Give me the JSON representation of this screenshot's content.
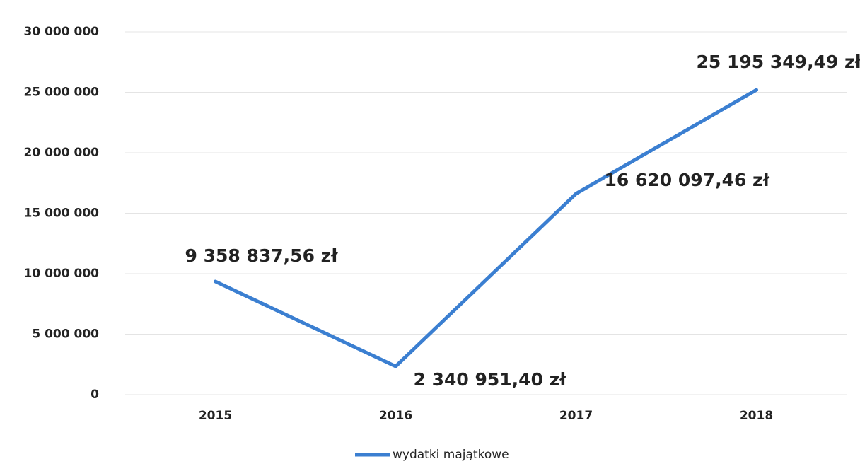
{
  "chart_data": {
    "type": "line",
    "categories": [
      "2015",
      "2016",
      "2017",
      "2018"
    ],
    "series": [
      {
        "name": "wydatki majątkowe",
        "color": "#3b7fd1",
        "values": [
          9358837.56,
          2340951.4,
          16620097.46,
          25195349.49
        ],
        "value_labels": [
          "9 358 837,56 zł",
          "2 340 951,40 zł",
          "16 620 097,46 zł",
          "25 195 349,49 zł"
        ]
      }
    ],
    "ylim": [
      0,
      30000000
    ],
    "yticks": [
      0,
      {
        "value": 5000000,
        "label": "5 000 000"
      },
      {
        "value": 10000000,
        "label": "10 000 000"
      },
      {
        "value": 15000000,
        "label": "15 000 000"
      },
      {
        "value": 20000000,
        "label": "20 000 000"
      },
      {
        "value": 25000000,
        "label": "25 000 000"
      },
      {
        "value": 30000000,
        "label": "30 000 000"
      }
    ],
    "grid": true,
    "legend": "bottom"
  }
}
